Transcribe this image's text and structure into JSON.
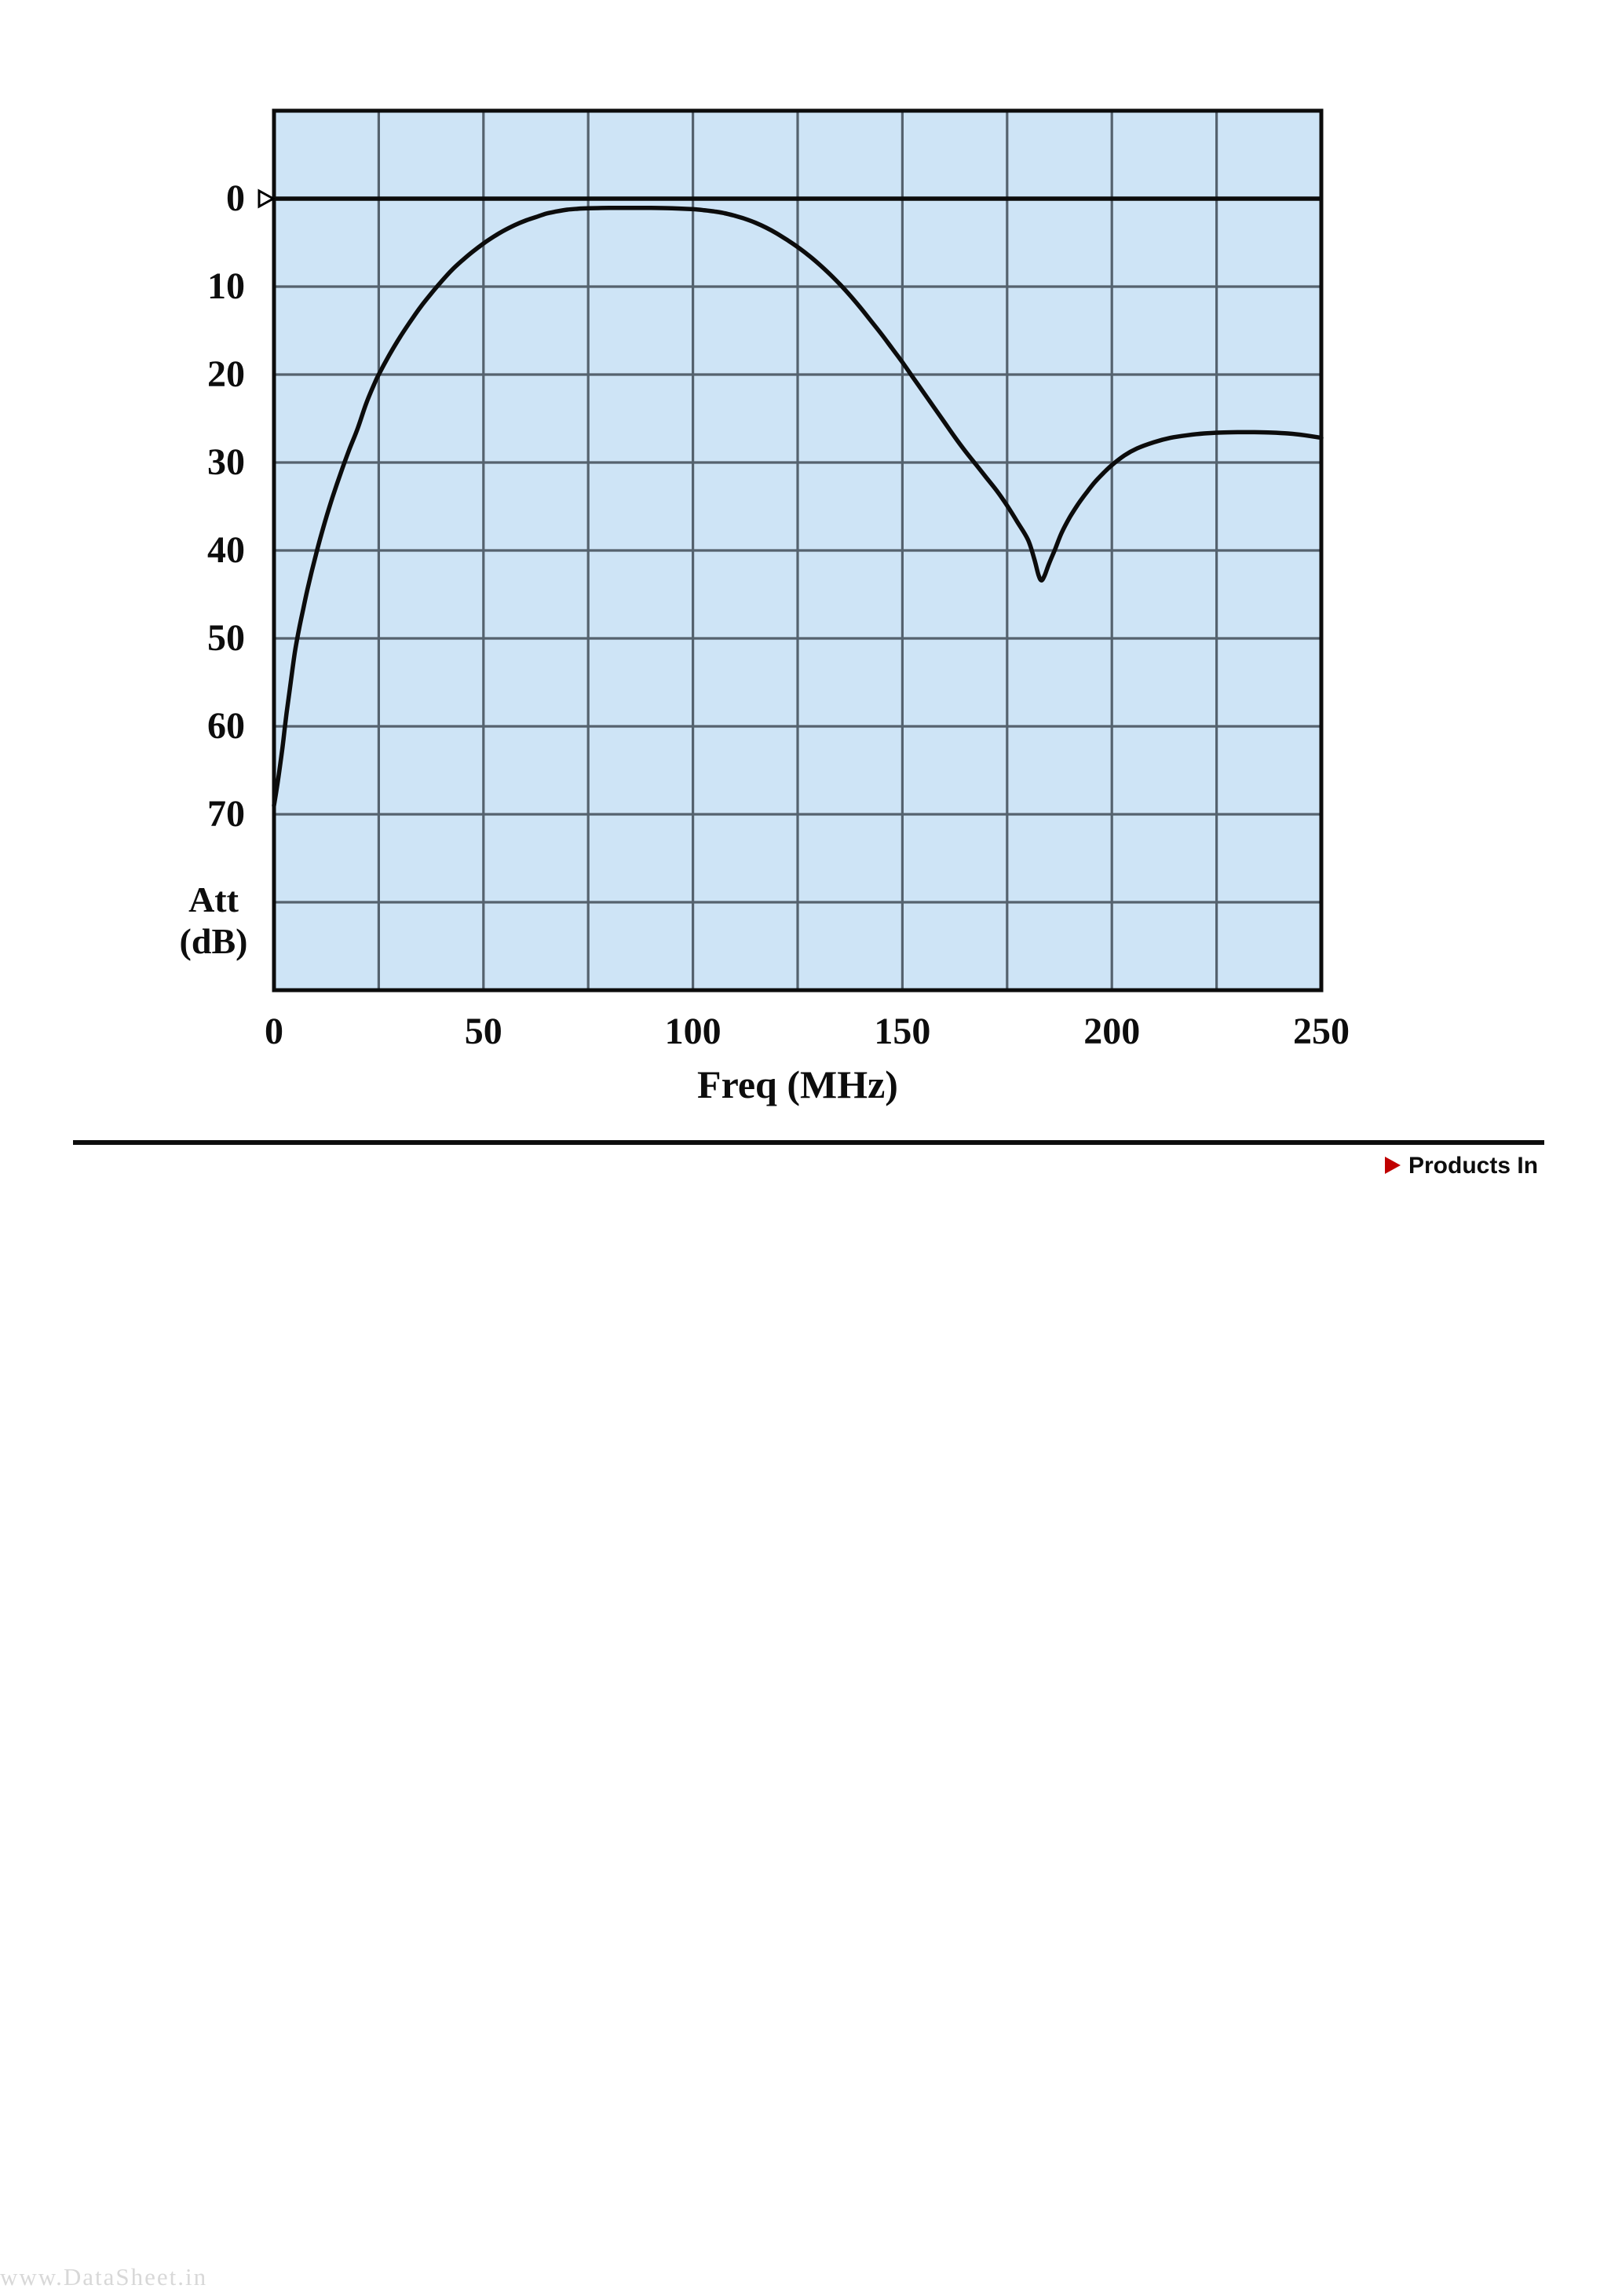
{
  "page": {
    "watermark": "www.DataSheet.in",
    "products_link_label": "Products In",
    "products_arrow_color": "#c00000"
  },
  "chart_data": {
    "type": "line",
    "title": "",
    "xlabel": "Freq (MHz)",
    "ylabel_line1": "Att",
    "ylabel_line2": "(dB)",
    "xlim": [
      0,
      250
    ],
    "ylim_top_to_bottom": [
      -10,
      90
    ],
    "y_axis_direction": "attenuation increases downward",
    "x_gridline_step_mhz": 25,
    "y_gridline_step_db": 10,
    "x_tick_labels": [
      "0",
      "50",
      "100",
      "150",
      "200",
      "250"
    ],
    "x_tick_values": [
      0,
      50,
      100,
      150,
      200,
      250
    ],
    "y_tick_labels": [
      "0",
      "10",
      "20",
      "30",
      "40",
      "50",
      "60",
      "70"
    ],
    "y_tick_values": [
      0,
      10,
      20,
      30,
      40,
      50,
      60,
      70
    ],
    "zero_line_db": 0,
    "grid": true,
    "legend": "none",
    "plot_bg": "#cee4f6",
    "grid_color": "#55626e",
    "frame_color": "#0c0c0c",
    "line_color": "#0c0c0c",
    "series": [
      {
        "name": "Attenuation",
        "x": [
          0,
          1,
          2,
          2.5,
          3,
          4,
          5,
          6,
          7,
          8,
          9,
          10,
          11,
          12.5,
          14,
          16,
          18,
          20,
          22,
          24,
          25,
          27.5,
          30,
          32.5,
          35,
          37.5,
          40,
          42.5,
          45,
          47.5,
          50,
          52.5,
          55,
          57.5,
          60,
          62.5,
          65,
          67.5,
          70,
          72.5,
          75,
          80,
          85,
          90,
          95,
          100,
          102.5,
          105,
          107.5,
          110,
          112.5,
          115,
          117.5,
          120,
          122.5,
          125,
          127.5,
          130,
          132.5,
          135,
          137.5,
          140,
          142.5,
          145,
          147.5,
          150,
          152.5,
          155,
          157.5,
          160,
          162.5,
          165,
          167.5,
          170,
          172.5,
          175,
          177.5,
          180,
          181.5,
          182.5,
          183.2,
          184,
          185,
          186.5,
          188,
          190,
          192,
          194,
          196,
          198,
          200,
          203,
          206,
          210,
          214,
          218,
          222,
          226,
          230,
          234,
          238,
          242,
          246,
          250
        ],
        "y_db": [
          69,
          66,
          62.5,
          60.5,
          58.5,
          55,
          51.5,
          48.9,
          46.6,
          44.4,
          42.4,
          40.5,
          38.7,
          36.2,
          33.9,
          31.1,
          28.5,
          26.1,
          23.3,
          21,
          20,
          17.8,
          15.8,
          14,
          12.3,
          10.8,
          9.4,
          8.1,
          7,
          6,
          5.1,
          4.3,
          3.6,
          3,
          2.5,
          2.1,
          1.7,
          1.45,
          1.25,
          1.15,
          1.1,
          1.05,
          1.05,
          1.05,
          1.1,
          1.2,
          1.3,
          1.45,
          1.65,
          1.95,
          2.3,
          2.75,
          3.3,
          3.95,
          4.7,
          5.5,
          6.4,
          7.4,
          8.5,
          9.7,
          11,
          12.4,
          13.9,
          15.4,
          17,
          18.6,
          20.3,
          22,
          23.7,
          25.4,
          27.1,
          28.7,
          30.2,
          31.7,
          33.2,
          34.9,
          36.8,
          38.8,
          41,
          42.8,
          43.4,
          42.8,
          41.5,
          39.8,
          38,
          36.2,
          34.7,
          33.4,
          32.2,
          31.2,
          30.3,
          29.2,
          28.4,
          27.7,
          27.2,
          26.9,
          26.7,
          26.6,
          26.55,
          26.55,
          26.6,
          26.7,
          26.9,
          27.2
        ]
      }
    ],
    "annotations": {
      "passband_center_mhz": 87,
      "passband_min_attenuation_db": 1,
      "notch_mhz": 183,
      "notch_attenuation_db": 43,
      "start_attenuation_db": 69,
      "stopband_lobe_db": 26.5
    }
  }
}
